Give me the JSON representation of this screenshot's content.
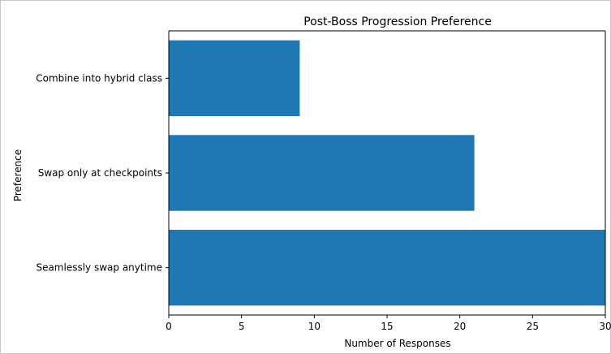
{
  "chart_data": {
    "type": "bar",
    "orientation": "horizontal",
    "title": "Post-Boss Progression Preference",
    "xlabel": "Number of Responses",
    "ylabel": "Preference",
    "categories": [
      "Seamlessly swap anytime",
      "Swap only at checkpoints",
      "Combine into hybrid class"
    ],
    "values": [
      30,
      21,
      9
    ],
    "xlim": [
      0,
      30
    ],
    "xticks": [
      0,
      5,
      10,
      15,
      20,
      25,
      30
    ],
    "grid": false,
    "bar_color": "#1f77b4"
  }
}
